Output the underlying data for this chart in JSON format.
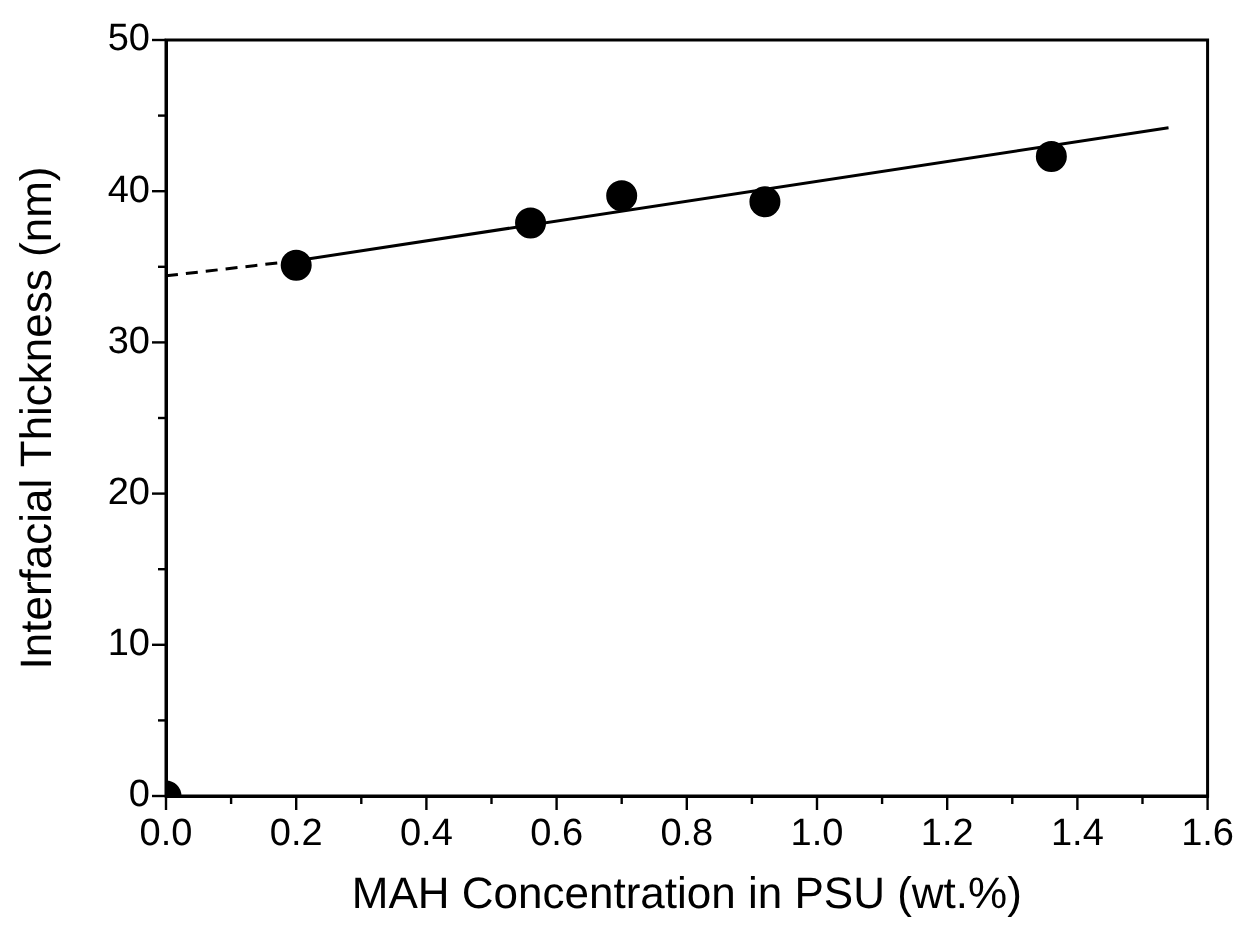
{
  "chart_data": {
    "type": "scatter",
    "xlabel": "MAH Concentration in PSU (wt.%)",
    "ylabel": "Interfacial Thickness (nm)",
    "xlim": [
      0,
      1.6
    ],
    "ylim": [
      0,
      50
    ],
    "xticks": [
      {
        "value": 0,
        "label": "0.0"
      },
      {
        "value": 0.1,
        "label": null
      },
      {
        "value": 0.2,
        "label": "0.2"
      },
      {
        "value": 0.3,
        "label": null
      },
      {
        "value": 0.4,
        "label": "0.4"
      },
      {
        "value": 0.5,
        "label": null
      },
      {
        "value": 0.6,
        "label": "0.6"
      },
      {
        "value": 0.7,
        "label": null
      },
      {
        "value": 0.8,
        "label": "0.8"
      },
      {
        "value": 0.9,
        "label": null
      },
      {
        "value": 1.0,
        "label": "1.0"
      },
      {
        "value": 1.1,
        "label": null
      },
      {
        "value": 1.2,
        "label": "1.2"
      },
      {
        "value": 1.3,
        "label": null
      },
      {
        "value": 1.4,
        "label": "1.4"
      },
      {
        "value": 1.5,
        "label": null
      },
      {
        "value": 1.6,
        "label": "1.6"
      }
    ],
    "yticks": [
      0,
      {
        "value": 5,
        "label": null
      },
      10,
      {
        "value": 15,
        "label": null
      },
      20,
      {
        "value": 25,
        "label": null
      },
      30,
      {
        "value": 35,
        "label": null
      },
      40,
      {
        "value": 45,
        "label": null
      },
      50
    ],
    "grid": false,
    "legend": false,
    "series": [
      {
        "type": "scatter",
        "color": "#000000",
        "marker": "circle",
        "x": [
          0,
          0.2,
          0.56,
          0.7,
          0.92,
          1.36
        ],
        "values": [
          0,
          35.1,
          37.9,
          39.7,
          39.3,
          42.3
        ]
      },
      {
        "type": "line",
        "color": "#000000",
        "marker": "none",
        "line_style": "solid",
        "x": [
          0.2,
          1.54
        ],
        "values": [
          35.4,
          44.2
        ]
      },
      {
        "type": "line",
        "color": "#000000",
        "marker": "none",
        "line_style": "dashed",
        "x": [
          0,
          0.2
        ],
        "values": [
          34.4,
          35.4
        ]
      }
    ]
  }
}
